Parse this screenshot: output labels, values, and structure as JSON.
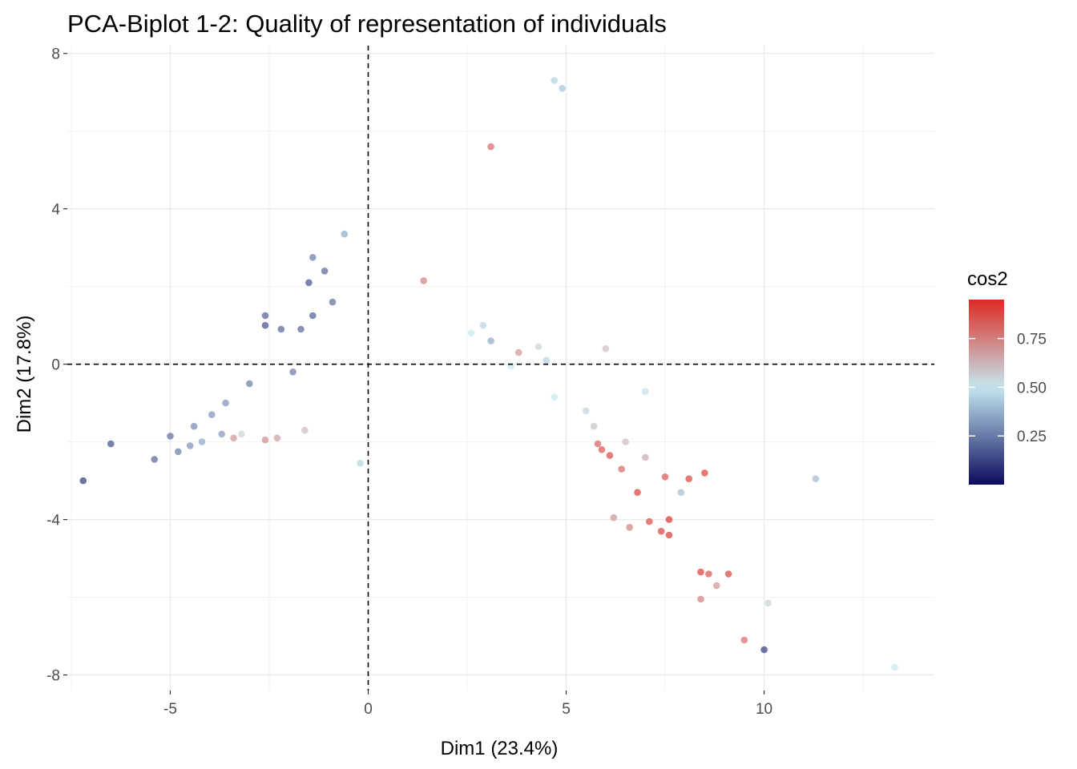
{
  "chart_data": {
    "type": "scatter",
    "title": "PCA-Biplot 1-2: Quality of representation of individuals",
    "xlabel": "Dim1 (23.4%)",
    "ylabel": "Dim2 (17.8%)",
    "xlim": [
      -7.6,
      14.3
    ],
    "ylim": [
      -8.4,
      8.2
    ],
    "x_ticks": [
      -5,
      0,
      5,
      10
    ],
    "x_tick_labels": [
      "-5",
      "0",
      "5",
      "10"
    ],
    "y_ticks": [
      -8,
      -4,
      0,
      4,
      8
    ],
    "y_tick_labels": [
      "-8",
      "-4",
      "0",
      "4",
      "8"
    ],
    "grid": true,
    "reference_lines": {
      "x": 0,
      "y": 0
    },
    "legend": {
      "title": "cos2",
      "position": "right",
      "type": "colorbar",
      "breaks": [
        0.25,
        0.5,
        0.75
      ],
      "labels": [
        "0.25",
        "0.50",
        "0.75"
      ],
      "range": [
        0.0,
        0.95
      ],
      "colors": {
        "low": "#0b0b5e",
        "mid": "#c4e8f0",
        "high": "#dd2a22"
      },
      "midpoint": 0.5
    },
    "point_alpha": 0.7,
    "series": [
      {
        "x": [
          -7.2,
          -6.5,
          -5.4,
          -5.0,
          -4.8,
          -4.5,
          -4.4,
          -4.2,
          -3.95,
          -3.7,
          -3.2,
          -3.0,
          -3.6,
          -3.4,
          -2.6,
          -2.3,
          -1.6,
          -1.9,
          -1.7,
          -1.4,
          -0.9,
          -1.5,
          -1.1,
          -2.6,
          -2.6,
          -2.2,
          -1.4,
          -0.6,
          3.1,
          4.7,
          4.9,
          1.4,
          -0.2,
          5.8,
          5.9,
          6.1,
          6.4,
          6.8,
          6.2,
          6.6,
          7.1,
          7.4,
          7.6,
          7.6,
          6.5,
          7.0,
          7.5,
          8.1,
          8.4,
          8.6,
          9.1,
          8.4,
          8.8,
          8.5,
          7.9,
          9.5,
          10.0,
          10.1,
          11.3,
          13.3,
          7.0,
          6.0,
          4.7,
          5.5,
          5.7,
          4.3,
          4.5,
          3.8,
          3.6,
          3.1,
          2.9,
          2.6
        ],
        "y": [
          -3.0,
          -2.05,
          -2.45,
          -1.85,
          -2.25,
          -2.1,
          -1.6,
          -2.0,
          -1.3,
          -1.8,
          -1.8,
          -0.5,
          -1.0,
          -1.9,
          -1.95,
          -1.9,
          -1.7,
          -0.2,
          0.9,
          1.25,
          1.6,
          2.1,
          2.4,
          1.0,
          1.25,
          0.9,
          2.75,
          3.35,
          5.6,
          7.3,
          7.1,
          2.15,
          -2.55,
          -2.05,
          -2.2,
          -2.35,
          -2.7,
          -3.3,
          -3.95,
          -4.2,
          -4.05,
          -4.3,
          -4.4,
          -4.0,
          -2.0,
          -2.4,
          -2.9,
          -2.95,
          -5.35,
          -5.4,
          -5.4,
          -6.05,
          -5.7,
          -2.8,
          -3.3,
          -7.1,
          -7.35,
          -6.15,
          -2.95,
          -7.8,
          -0.7,
          0.4,
          -0.85,
          -1.2,
          -1.6,
          0.45,
          0.1,
          0.3,
          -0.05,
          0.6,
          1.0,
          0.8
        ],
        "cos2": [
          0.1,
          0.15,
          0.2,
          0.22,
          0.25,
          0.3,
          0.28,
          0.35,
          0.3,
          0.32,
          0.55,
          0.25,
          0.3,
          0.7,
          0.72,
          0.68,
          0.6,
          0.25,
          0.2,
          0.18,
          0.22,
          0.15,
          0.2,
          0.15,
          0.18,
          0.2,
          0.25,
          0.35,
          0.8,
          0.45,
          0.42,
          0.75,
          0.45,
          0.82,
          0.85,
          0.88,
          0.8,
          0.9,
          0.7,
          0.75,
          0.88,
          0.9,
          0.92,
          0.93,
          0.6,
          0.65,
          0.85,
          0.9,
          0.92,
          0.85,
          0.9,
          0.75,
          0.7,
          0.9,
          0.4,
          0.8,
          0.1,
          0.55,
          0.4,
          0.5,
          0.48,
          0.6,
          0.5,
          0.55,
          0.6,
          0.55,
          0.45,
          0.7,
          0.5,
          0.35,
          0.45,
          0.5
        ]
      }
    ]
  }
}
